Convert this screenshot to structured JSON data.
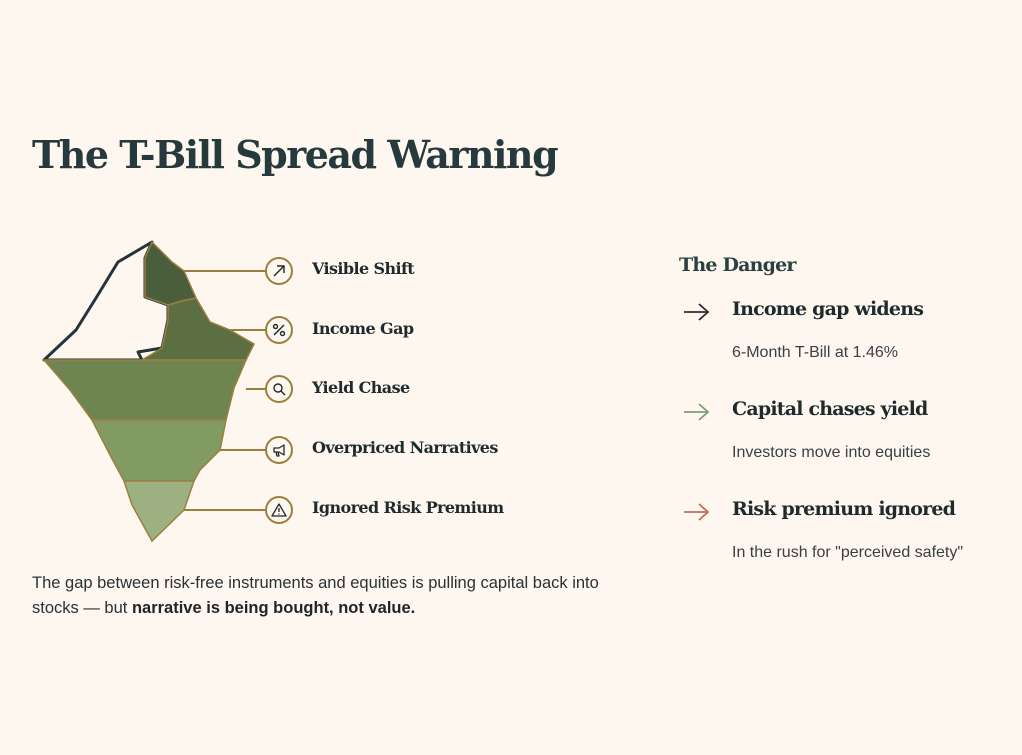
{
  "title": "The T-Bill Spread Warning",
  "iceberg": {
    "layers": [
      {
        "label": "Visible Shift",
        "icon": "arrow-up-right-icon",
        "color": "#4b5e3b"
      },
      {
        "label": "Income Gap",
        "icon": "percent-icon",
        "color": "#5b6f42"
      },
      {
        "label": "Yield Chase",
        "icon": "search-icon",
        "color": "#6e8552"
      },
      {
        "label": "Overpriced Narratives",
        "icon": "megaphone-icon",
        "color": "#819b62"
      },
      {
        "label": "Ignored Risk Premium",
        "icon": "warning-icon",
        "color": "#9cb082"
      }
    ]
  },
  "caption": {
    "text": "The gap between risk-free instruments and equities is pulling capital back into stocks — but ",
    "bold": "narrative is being bought, not value."
  },
  "danger": {
    "title": "The Danger",
    "items": [
      {
        "heading": "Income gap widens",
        "detail": "6-Month T-Bill at 1.46%",
        "arrow_color": "#2a2f33"
      },
      {
        "heading": "Capital chases yield",
        "detail": "Investors move into equities",
        "arrow_color": "#7f9c78"
      },
      {
        "heading": "Risk premium ignored",
        "detail": "In the rush for \"perceived safety\"",
        "arrow_color": "#c46a5c"
      }
    ]
  }
}
